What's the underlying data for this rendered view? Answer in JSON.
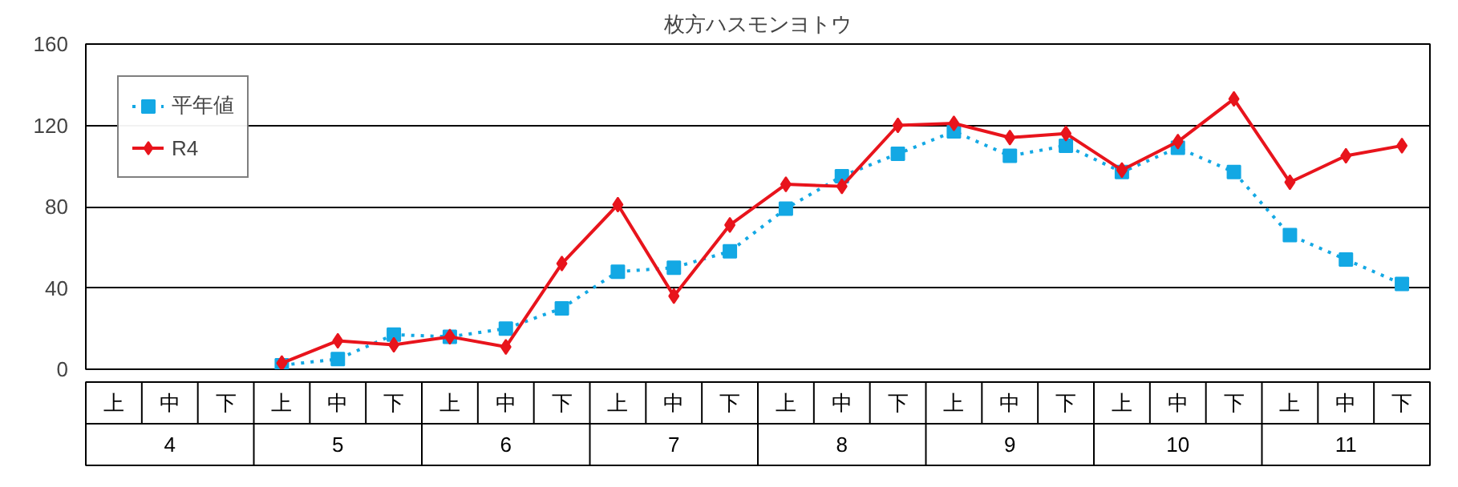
{
  "chart_data": {
    "type": "line",
    "title": "枚方ハスモンヨトウ",
    "categories": [
      "上",
      "中",
      "下",
      "上",
      "中",
      "下",
      "上",
      "中",
      "下",
      "上",
      "中",
      "下",
      "上",
      "中",
      "下",
      "上",
      "中",
      "下",
      "上",
      "中",
      "下",
      "上",
      "中",
      "下"
    ],
    "annotations": [
      "4",
      "5",
      "6",
      "7",
      "8",
      "9",
      "10",
      "11"
    ],
    "series": [
      {
        "name": "平年値",
        "color": "#13a8e4",
        "marker": "square",
        "line_style": "dotted",
        "values": [
          null,
          null,
          null,
          2,
          5,
          17,
          16,
          20,
          30,
          48,
          50,
          58,
          79,
          95,
          106,
          117,
          105,
          110,
          97,
          109,
          97,
          66,
          54,
          42
        ]
      },
      {
        "name": "R4",
        "color": "#e8141c",
        "marker": "diamond",
        "line_style": "solid",
        "values": [
          null,
          null,
          null,
          3,
          14,
          12,
          16,
          11,
          52,
          81,
          36,
          71,
          91,
          90,
          120,
          121,
          114,
          116,
          98,
          112,
          133,
          92,
          105,
          110
        ]
      }
    ],
    "ylim": [
      0,
      160
    ],
    "yticks": [
      0,
      40,
      80,
      120,
      160
    ],
    "grid": "y",
    "legend": "top left"
  }
}
